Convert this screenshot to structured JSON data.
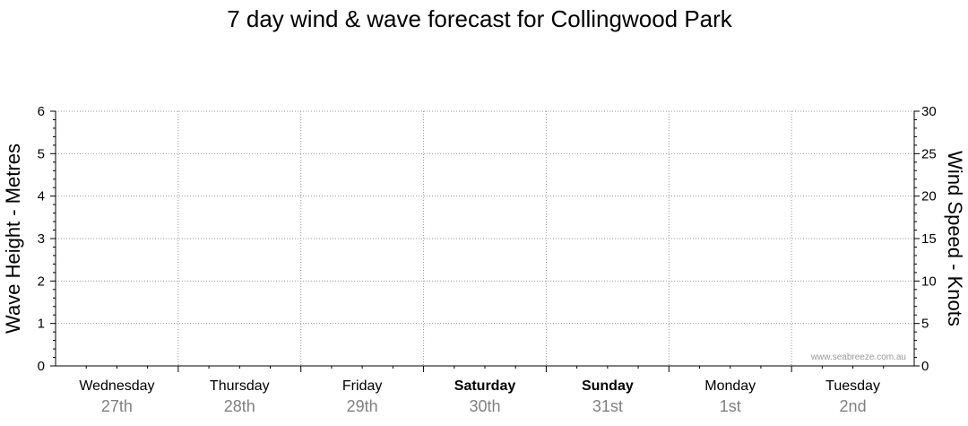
{
  "chart_data": {
    "type": "line",
    "title": "7 day wind & wave forecast for Collingwood Park",
    "ylabel": "Wave Height - Metres",
    "y2label": "Wind Speed - Knots",
    "ylim": [
      0,
      6
    ],
    "y2lim": [
      0,
      30
    ],
    "yticks": [
      "0",
      "1",
      "2",
      "3",
      "4",
      "5",
      "6"
    ],
    "y2ticks": [
      "0",
      "5",
      "10",
      "15",
      "20",
      "25",
      "30"
    ],
    "grid": true,
    "days": [
      {
        "day": "Wednesday",
        "date": "27th",
        "bold": false
      },
      {
        "day": "Thursday",
        "date": "28th",
        "bold": false
      },
      {
        "day": "Friday",
        "date": "29th",
        "bold": false
      },
      {
        "day": "Saturday",
        "date": "30th",
        "bold": true
      },
      {
        "day": "Sunday",
        "date": "31st",
        "bold": true
      },
      {
        "day": "Monday",
        "date": "1st",
        "bold": false
      },
      {
        "day": "Tuesday",
        "date": "2nd",
        "bold": false
      }
    ],
    "series": [],
    "watermark": "www.seabreeze.com.au"
  },
  "colors": {
    "axis": "#000000",
    "grid": "#999999",
    "date_text": "#808080",
    "watermark": "#999999"
  }
}
